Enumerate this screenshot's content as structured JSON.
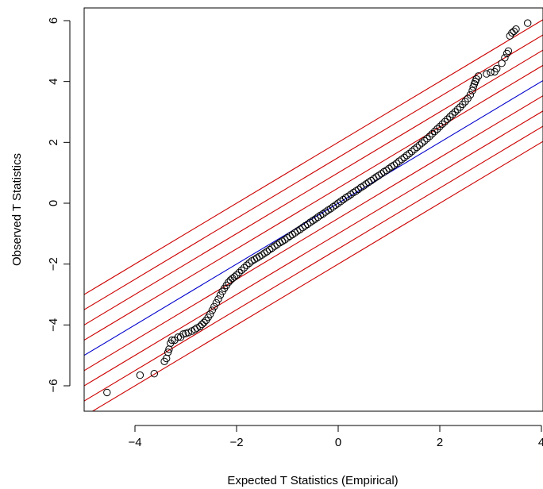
{
  "chart_data": {
    "type": "scatter",
    "title": "",
    "xlabel": "Expected T Statistics (Empirical)",
    "ylabel": "Observed T Statistics",
    "xlim": [
      -5,
      4
    ],
    "ylim": [
      -6.7,
      6.3
    ],
    "x_ticks": [
      -4,
      -2,
      0,
      2,
      4
    ],
    "y_ticks": [
      -6,
      -4,
      -2,
      0,
      2,
      4,
      6
    ],
    "x_tick_labels": [
      "−4",
      "−2",
      "0",
      "2",
      "4"
    ],
    "y_tick_labels": [
      "−6",
      "−4",
      "−2",
      "0",
      "2",
      "4",
      "6"
    ],
    "grid": false,
    "legend": "none",
    "colors": {
      "points": "#000000",
      "identity_line": "#0000cc",
      "delta_lines": "#cc0000"
    },
    "reference_lines": {
      "identity": {
        "slope": 1,
        "intercept": 0
      },
      "delta_band_intercepts": [
        2.0,
        1.5,
        1.0,
        0.5,
        -0.5,
        -1.0,
        -1.5,
        -2.0
      ]
    },
    "series": [
      {
        "points": [
          [
            -4.55,
            -6.22
          ],
          [
            -3.9,
            -5.65
          ],
          [
            -3.62,
            -5.6
          ],
          [
            -3.42,
            -5.2
          ],
          [
            -3.38,
            -5.1
          ],
          [
            -3.35,
            -4.9
          ],
          [
            -3.33,
            -4.8
          ],
          [
            -3.3,
            -4.6
          ],
          [
            -3.27,
            -4.5
          ],
          [
            -3.22,
            -4.5
          ],
          [
            -3.15,
            -4.4
          ],
          [
            -3.1,
            -4.4
          ],
          [
            -3.05,
            -4.3
          ],
          [
            -3.0,
            -4.28
          ],
          [
            -2.95,
            -4.25
          ],
          [
            -2.88,
            -4.2
          ],
          [
            -2.82,
            -4.15
          ],
          [
            -2.78,
            -4.1
          ],
          [
            -2.72,
            -4.05
          ],
          [
            -2.68,
            -3.98
          ],
          [
            -2.64,
            -3.92
          ],
          [
            -2.6,
            -3.85
          ],
          [
            -2.56,
            -3.75
          ],
          [
            -2.52,
            -3.65
          ],
          [
            -2.48,
            -3.52
          ],
          [
            -2.44,
            -3.4
          ],
          [
            -2.4,
            -3.27
          ],
          [
            -2.36,
            -3.15
          ],
          [
            -2.32,
            -3.02
          ],
          [
            -2.28,
            -2.9
          ],
          [
            -2.24,
            -2.8
          ],
          [
            -2.2,
            -2.7
          ],
          [
            -2.16,
            -2.6
          ],
          [
            -2.12,
            -2.53
          ],
          [
            -2.08,
            -2.47
          ],
          [
            -2.04,
            -2.42
          ],
          [
            -2.0,
            -2.36
          ],
          [
            -1.95,
            -2.28
          ],
          [
            -1.9,
            -2.2
          ],
          [
            -1.85,
            -2.12
          ],
          [
            -1.8,
            -2.04
          ],
          [
            -1.75,
            -1.97
          ],
          [
            -1.7,
            -1.9
          ],
          [
            -1.65,
            -1.85
          ],
          [
            -1.6,
            -1.8
          ],
          [
            -1.55,
            -1.75
          ],
          [
            -1.5,
            -1.7
          ],
          [
            -1.45,
            -1.64
          ],
          [
            -1.4,
            -1.59
          ],
          [
            -1.35,
            -1.53
          ],
          [
            -1.3,
            -1.47
          ],
          [
            -1.25,
            -1.41
          ],
          [
            -1.2,
            -1.36
          ],
          [
            -1.15,
            -1.3
          ],
          [
            -1.1,
            -1.25
          ],
          [
            -1.05,
            -1.2
          ],
          [
            -1.0,
            -1.14
          ],
          [
            -0.95,
            -1.08
          ],
          [
            -0.9,
            -1.03
          ],
          [
            -0.85,
            -0.97
          ],
          [
            -0.8,
            -0.91
          ],
          [
            -0.75,
            -0.86
          ],
          [
            -0.7,
            -0.8
          ],
          [
            -0.65,
            -0.74
          ],
          [
            -0.6,
            -0.69
          ],
          [
            -0.55,
            -0.63
          ],
          [
            -0.5,
            -0.57
          ],
          [
            -0.45,
            -0.52
          ],
          [
            -0.4,
            -0.46
          ],
          [
            -0.35,
            -0.4
          ],
          [
            -0.3,
            -0.35
          ],
          [
            -0.25,
            -0.29
          ],
          [
            -0.2,
            -0.23
          ],
          [
            -0.15,
            -0.18
          ],
          [
            -0.1,
            -0.12
          ],
          [
            -0.05,
            -0.06
          ],
          [
            0.0,
            0.0
          ],
          [
            0.05,
            0.06
          ],
          [
            0.1,
            0.12
          ],
          [
            0.15,
            0.18
          ],
          [
            0.2,
            0.23
          ],
          [
            0.25,
            0.29
          ],
          [
            0.3,
            0.35
          ],
          [
            0.35,
            0.4
          ],
          [
            0.4,
            0.46
          ],
          [
            0.45,
            0.52
          ],
          [
            0.5,
            0.57
          ],
          [
            0.55,
            0.63
          ],
          [
            0.6,
            0.69
          ],
          [
            0.65,
            0.74
          ],
          [
            0.7,
            0.8
          ],
          [
            0.75,
            0.86
          ],
          [
            0.8,
            0.91
          ],
          [
            0.85,
            0.97
          ],
          [
            0.9,
            1.03
          ],
          [
            0.95,
            1.08
          ],
          [
            1.0,
            1.14
          ],
          [
            1.05,
            1.2
          ],
          [
            1.1,
            1.25
          ],
          [
            1.15,
            1.31
          ],
          [
            1.2,
            1.38
          ],
          [
            1.25,
            1.44
          ],
          [
            1.3,
            1.5
          ],
          [
            1.35,
            1.57
          ],
          [
            1.4,
            1.63
          ],
          [
            1.45,
            1.7
          ],
          [
            1.5,
            1.77
          ],
          [
            1.55,
            1.84
          ],
          [
            1.6,
            1.91
          ],
          [
            1.65,
            1.98
          ],
          [
            1.7,
            2.05
          ],
          [
            1.75,
            2.12
          ],
          [
            1.8,
            2.2
          ],
          [
            1.85,
            2.28
          ],
          [
            1.9,
            2.36
          ],
          [
            1.95,
            2.44
          ],
          [
            2.0,
            2.52
          ],
          [
            2.05,
            2.6
          ],
          [
            2.1,
            2.68
          ],
          [
            2.15,
            2.76
          ],
          [
            2.2,
            2.84
          ],
          [
            2.25,
            2.92
          ],
          [
            2.3,
            3.0
          ],
          [
            2.35,
            3.08
          ],
          [
            2.4,
            3.16
          ],
          [
            2.45,
            3.25
          ],
          [
            2.5,
            3.34
          ],
          [
            2.55,
            3.44
          ],
          [
            2.6,
            3.56
          ],
          [
            2.64,
            3.7
          ],
          [
            2.66,
            3.82
          ],
          [
            2.68,
            3.92
          ],
          [
            2.7,
            4.0
          ],
          [
            2.72,
            4.08
          ],
          [
            2.76,
            4.18
          ],
          [
            2.92,
            4.25
          ],
          [
            3.0,
            4.3
          ],
          [
            3.08,
            4.32
          ],
          [
            3.12,
            4.42
          ],
          [
            3.22,
            4.6
          ],
          [
            3.28,
            4.78
          ],
          [
            3.32,
            4.92
          ],
          [
            3.35,
            5.0
          ],
          [
            3.38,
            5.5
          ],
          [
            3.42,
            5.6
          ],
          [
            3.46,
            5.65
          ],
          [
            3.5,
            5.72
          ],
          [
            3.73,
            5.92
          ]
        ]
      }
    ]
  }
}
